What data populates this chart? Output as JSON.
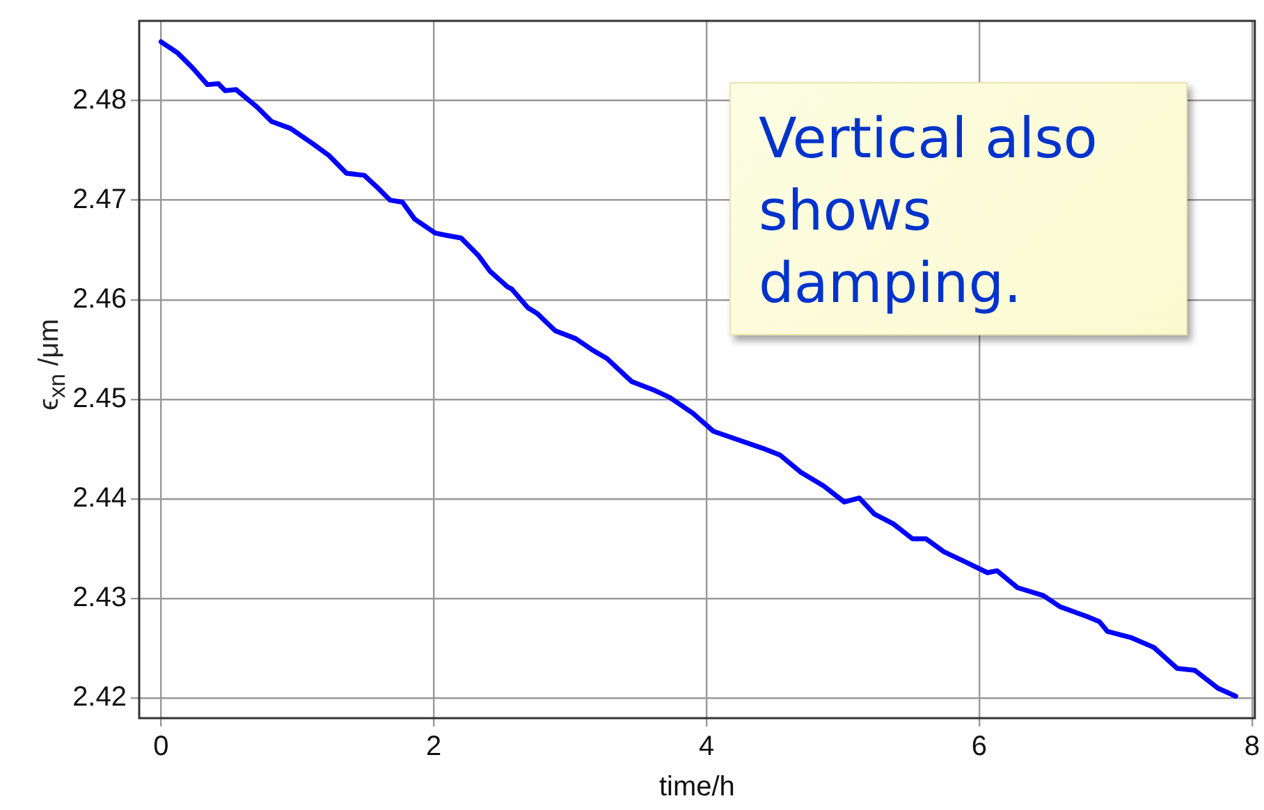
{
  "chart_data": {
    "type": "line",
    "xlabel": "time/h",
    "ylabel": "ϵ$_{xn}$ /μm",
    "annotations": [
      "Vertical also shows damping."
    ],
    "xlim": [
      -0.16,
      8.02
    ],
    "ylim": [
      2.418,
      2.488
    ],
    "xticks": [
      0,
      2,
      4,
      6,
      8
    ],
    "yticks": [
      2.42,
      2.43,
      2.44,
      2.45,
      2.46,
      2.47,
      2.48
    ],
    "grid": true,
    "legend": false,
    "marker": "none",
    "line_style": "solid",
    "series": [
      {
        "color": "#0000ff",
        "x": [
          0,
          0.12,
          0.23,
          0.34,
          0.42,
          0.47,
          0.55,
          0.7,
          0.81,
          0.95,
          1.11,
          1.23,
          1.36,
          1.49,
          1.6,
          1.68,
          1.77,
          1.86,
          2.01,
          2.08,
          2.2,
          2.33,
          2.41,
          2.54,
          2.57,
          2.69,
          2.76,
          2.89,
          3.04,
          3.17,
          3.27,
          3.45,
          3.62,
          3.73,
          3.9,
          4.05,
          4.22,
          4.41,
          4.54,
          4.69,
          4.86,
          5.01,
          5.12,
          5.23,
          5.37,
          5.51,
          5.61,
          5.74,
          5.91,
          6.06,
          6.13,
          6.28,
          6.47,
          6.59,
          6.79,
          6.88,
          6.94,
          7.11,
          7.28,
          7.45,
          7.58,
          7.75,
          7.88
        ],
        "values": [
          2.4859,
          2.4848,
          2.4833,
          2.4816,
          2.4817,
          2.481,
          2.4811,
          2.4794,
          2.4779,
          2.4772,
          2.4757,
          2.4745,
          2.4727,
          2.4725,
          2.4711,
          2.47,
          2.4698,
          2.4681,
          2.4667,
          2.4665,
          2.4662,
          2.4644,
          2.4629,
          2.4613,
          2.4611,
          2.4592,
          2.4586,
          2.4569,
          2.4561,
          2.4549,
          2.4541,
          2.4518,
          2.4509,
          2.4502,
          2.4486,
          2.4468,
          2.446,
          2.4451,
          2.4444,
          2.4427,
          2.4413,
          2.4397,
          2.4401,
          2.4385,
          2.4375,
          2.436,
          2.436,
          2.4347,
          2.4336,
          2.4326,
          2.4328,
          2.4311,
          2.4303,
          2.4292,
          2.4282,
          2.4277,
          2.4267,
          2.4261,
          2.4251,
          2.423,
          2.4228,
          2.421,
          2.4202
        ]
      }
    ]
  }
}
